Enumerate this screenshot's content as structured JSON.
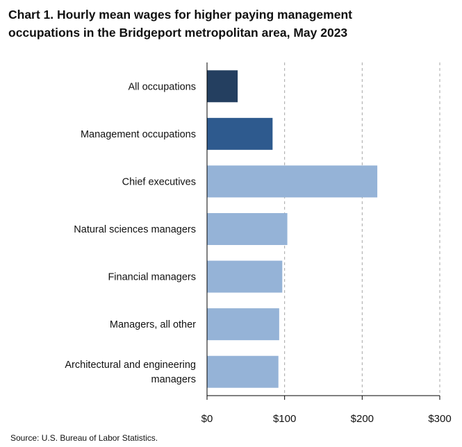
{
  "title": {
    "line1": "Chart 1. Hourly mean wages for higher paying management",
    "line2": "occupations in the Bridgeport metropolitan area, May 2023"
  },
  "source": "Source: U.S. Bureau of Labor Statistics.",
  "colors": {
    "all_occupations": "#243f60",
    "management": "#2e5a8e",
    "detailed": "#95b3d7",
    "gridline": "#a6a6a6",
    "axis": "#000000"
  },
  "chart_data": {
    "type": "bar",
    "orientation": "horizontal",
    "title": "Chart 1. Hourly mean wages for higher paying management occupations in the Bridgeport metropolitan area, May 2023",
    "xlabel": "",
    "ylabel": "",
    "xlim": [
      0,
      300
    ],
    "x_ticks": [
      0,
      100,
      200,
      300
    ],
    "x_tick_labels": [
      "$0",
      "$100",
      "$200",
      "$300"
    ],
    "grid": "vertical dashed",
    "categories": [
      [
        "All occupations"
      ],
      [
        "Management occupations"
      ],
      [
        "Chief executives"
      ],
      [
        "Natural sciences managers"
      ],
      [
        "Financial managers"
      ],
      [
        "Managers, all other"
      ],
      [
        "Architectural and engineering",
        "managers"
      ]
    ],
    "values": [
      39.5,
      84.5,
      219.5,
      103.5,
      97.0,
      93.0,
      92.0
    ],
    "bar_color_keys": [
      "all_occupations",
      "management",
      "detailed",
      "detailed",
      "detailed",
      "detailed",
      "detailed"
    ]
  }
}
